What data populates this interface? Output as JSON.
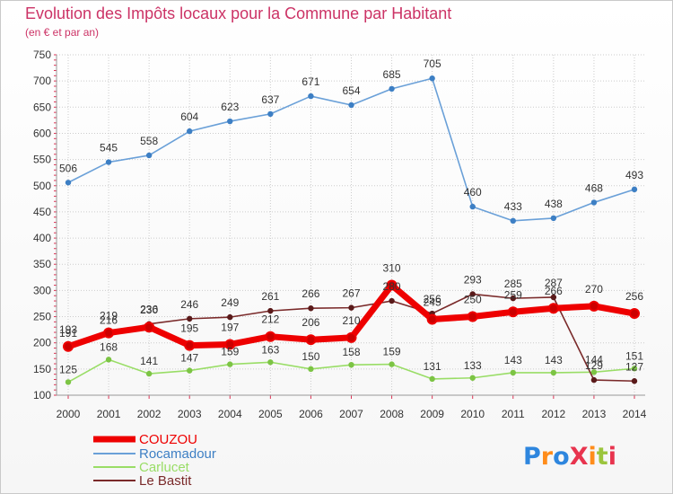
{
  "chart_data": {
    "type": "line",
    "title": "Evolution des Impôts locaux pour la Commune par Habitant",
    "subtitle": "(en € et par an)",
    "x": [
      "2000",
      "2001",
      "2002",
      "2003",
      "2004",
      "2005",
      "2006",
      "2007",
      "2008",
      "2009",
      "2010",
      "2011",
      "2012",
      "2013",
      "2014"
    ],
    "ylim": [
      100,
      750
    ],
    "yticks": [
      100,
      150,
      200,
      250,
      300,
      350,
      400,
      450,
      500,
      550,
      600,
      650,
      700,
      750
    ],
    "grid": true,
    "legend_position": "bottom-left",
    "series": [
      {
        "name": "COUZOU",
        "color": "#ee0000",
        "values": [
          193,
          219,
          230,
          195,
          197,
          212,
          206,
          210,
          310,
          245,
          250,
          259,
          266,
          270,
          256
        ],
        "labels": [
          "193",
          "219",
          "230",
          "195",
          "197",
          "212",
          "206",
          "210",
          "310",
          "245",
          "250",
          "259",
          "266",
          "270",
          "256"
        ]
      },
      {
        "name": "Rocamadour",
        "color": "#6aa0d8",
        "values": [
          506,
          545,
          558,
          604,
          623,
          637,
          671,
          654,
          685,
          705,
          460,
          433,
          438,
          468,
          493
        ],
        "labels": [
          "506",
          "545",
          "558",
          "604",
          "623",
          "637",
          "671",
          "654",
          "685",
          "705",
          "460",
          "433",
          "438",
          "468",
          "493"
        ]
      },
      {
        "name": "Carlucet",
        "color": "#99dd66",
        "values": [
          125,
          168,
          141,
          147,
          159,
          163,
          150,
          158,
          159,
          131,
          133,
          143,
          143,
          144,
          151
        ],
        "labels": [
          "125",
          "168",
          "141",
          "147",
          "159",
          "163",
          "150",
          "158",
          "159",
          "131",
          "133",
          "143",
          "143",
          "144",
          "151"
        ]
      },
      {
        "name": "Le Bastit",
        "color": "#7a2a2a",
        "values": [
          191,
          216,
          236,
          246,
          249,
          261,
          266,
          267,
          280,
          256,
          293,
          285,
          287,
          129,
          127
        ],
        "labels": [
          "191",
          "216",
          "236",
          "246",
          "249",
          "261",
          "266",
          "267",
          "280",
          "256",
          "293",
          "285",
          "287",
          "129",
          "127"
        ]
      }
    ]
  },
  "logo": {
    "text": "ProXiti",
    "colors": [
      "#2e86de",
      "#ff8c1a",
      "#2e86de",
      "#e8344e",
      "#ff8c1a",
      "#9bc53d",
      "#e8344e"
    ]
  }
}
